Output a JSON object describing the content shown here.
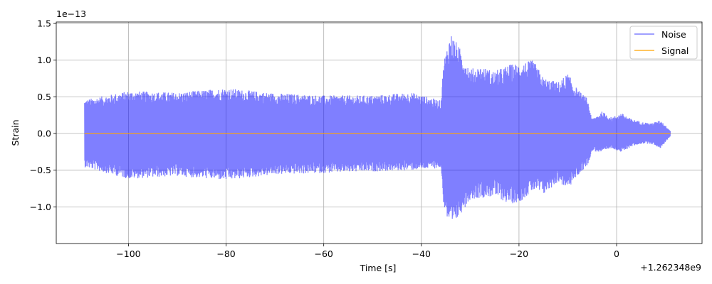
{
  "chart_data": {
    "type": "line",
    "title": "",
    "xlabel": "Time [s]",
    "ylabel": "Strain",
    "x_offset_label": "+1.262348e9",
    "y_scale_label": "1e−13",
    "xlim": [
      -114.8,
      17.5
    ],
    "ylim": [
      -1.5,
      1.52
    ],
    "x_ticks": [
      -100,
      -80,
      -60,
      -40,
      -20,
      0
    ],
    "x_tick_labels": [
      "−100",
      "−80",
      "−60",
      "−40",
      "−20",
      "0"
    ],
    "y_ticks": [
      -1.0,
      -0.5,
      0.0,
      0.5,
      1.0,
      1.5
    ],
    "y_tick_labels": [
      "−1.0",
      "−0.5",
      "0.0",
      "0.5",
      "1.0",
      "1.5"
    ],
    "grid": true,
    "legend_position": "top-right",
    "series": [
      {
        "name": "Noise",
        "color": "#0000ff",
        "alpha": 0.5,
        "envelope": {
          "x": [
            -109,
            -100,
            -90,
            -80,
            -70,
            -60,
            -50,
            -42,
            -36,
            -35.4,
            -34,
            -32,
            -30,
            -28,
            -25,
            -22,
            -20,
            -17,
            -15,
            -12,
            -10,
            -8,
            -6,
            -5,
            -3,
            -1,
            1,
            3,
            5,
            7,
            9,
            11
          ],
          "upper": [
            0.46,
            0.58,
            0.56,
            0.62,
            0.55,
            0.52,
            0.52,
            0.56,
            0.45,
            1.0,
            1.38,
            1.15,
            0.88,
            0.92,
            0.85,
            0.94,
            0.96,
            1.0,
            0.76,
            0.7,
            0.82,
            0.6,
            0.48,
            0.2,
            0.3,
            0.22,
            0.28,
            0.2,
            0.16,
            0.14,
            0.18,
            0.04
          ],
          "lower": [
            -0.46,
            -0.62,
            -0.58,
            -0.64,
            -0.56,
            -0.54,
            -0.52,
            -0.5,
            -0.47,
            -1.0,
            -1.35,
            -1.1,
            -0.9,
            -0.88,
            -0.86,
            -0.96,
            -0.94,
            -0.78,
            -0.84,
            -0.66,
            -0.76,
            -0.58,
            -0.44,
            -0.24,
            -0.26,
            -0.2,
            -0.26,
            -0.18,
            -0.14,
            -0.14,
            -0.2,
            -0.04
          ]
        }
      },
      {
        "name": "Signal",
        "color": "#ffa500",
        "alpha": 1.0,
        "x": [
          -109,
          11
        ],
        "values": [
          0.0,
          0.0
        ]
      }
    ]
  }
}
